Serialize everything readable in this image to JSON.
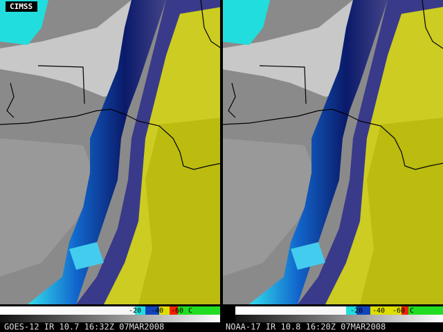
{
  "logo": "CIMSS",
  "panels": [
    {
      "caption": "GOES-12 IR 10.7 16:32Z 07MAR2008",
      "colorbar": {
        "labels": [
          "-20",
          "-40",
          "-60"
        ],
        "unit": "C"
      }
    },
    {
      "caption": "NOAA-17 IR 10.8 16:20Z 07MAR2008",
      "colorbar": {
        "labels": [
          "-20",
          "-40",
          "-60"
        ],
        "unit": "C"
      }
    }
  ]
}
